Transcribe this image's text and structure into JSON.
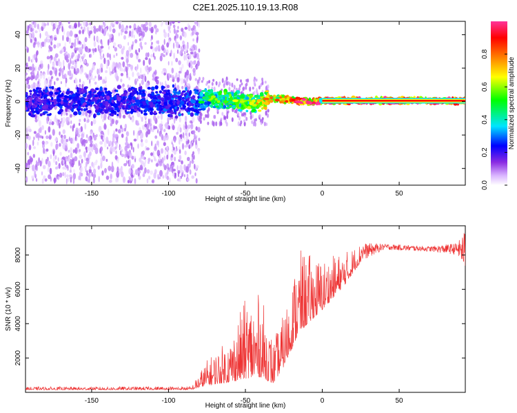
{
  "title": "C2E1.2025.110.19.13.R08",
  "chart_data": [
    {
      "type": "heatmap",
      "xlabel": "Height of straight line (km)",
      "ylabel": "Frequency (Hz)",
      "xlim": [
        -193,
        93
      ],
      "ylim": [
        -50,
        48
      ],
      "xticks": [
        -150,
        -100,
        -50,
        0,
        50
      ],
      "yticks": [
        -40,
        -20,
        0,
        20,
        40
      ],
      "colorbar": {
        "label": "Normalized spectral amplitude",
        "range": [
          0,
          1
        ],
        "ticks": [
          "0.0",
          "0.2",
          "0.4",
          "0.6",
          "0.8"
        ],
        "colors": [
          "#ffffff",
          "#d9b3ff",
          "#8a2be2",
          "#0000ff",
          "#00e5ff",
          "#00ff00",
          "#ffff00",
          "#ff8000",
          "#ff0000",
          "#ff3399"
        ]
      },
      "ridge": {
        "points": [
          {
            "x": -193,
            "y": 0,
            "amp": 0.25
          },
          {
            "x": -120,
            "y": 0,
            "amp": 0.26
          },
          {
            "x": -82,
            "y": 0,
            "amp": 0.3
          },
          {
            "x": -75,
            "y": 2,
            "amp": 0.45
          },
          {
            "x": -60,
            "y": 1,
            "amp": 0.55
          },
          {
            "x": -45,
            "y": -1,
            "amp": 0.6
          },
          {
            "x": -32,
            "y": 2,
            "amp": 0.75
          },
          {
            "x": -20,
            "y": 1,
            "amp": 0.8
          },
          {
            "x": -10,
            "y": 0,
            "amp": 0.9
          },
          {
            "x": 0,
            "y": 0.5,
            "amp": 0.97
          },
          {
            "x": 93,
            "y": 0.5,
            "amp": 0.98
          }
        ],
        "scatter_halfwidth_hz": {
          "below_minus80": 48,
          "minus80_to_minus35": 6,
          "above_minus35": 2
        }
      }
    },
    {
      "type": "line",
      "xlabel": "Height of straight line (km)",
      "ylabel": "SNR (10 * v/v)",
      "xlim": [
        -193,
        93
      ],
      "ylim": [
        0,
        9700
      ],
      "xticks": [
        -150,
        -100,
        -50,
        0,
        50
      ],
      "yticks": [
        2000,
        4000,
        6000,
        8000
      ],
      "color": "#ee3333",
      "envelope": [
        {
          "x": -193,
          "base": 150,
          "peak": 320
        },
        {
          "x": -85,
          "base": 150,
          "peak": 350
        },
        {
          "x": -75,
          "base": 400,
          "peak": 1900
        },
        {
          "x": -60,
          "base": 600,
          "peak": 3200
        },
        {
          "x": -50,
          "base": 800,
          "peak": 5500
        },
        {
          "x": -40,
          "base": 900,
          "peak": 5800
        },
        {
          "x": -32,
          "base": 500,
          "peak": 3000
        },
        {
          "x": -25,
          "base": 1500,
          "peak": 4600
        },
        {
          "x": -15,
          "base": 3500,
          "peak": 8300
        },
        {
          "x": 0,
          "base": 4800,
          "peak": 7800
        },
        {
          "x": 15,
          "base": 6300,
          "peak": 8200
        },
        {
          "x": 25,
          "base": 7600,
          "peak": 8700
        },
        {
          "x": 40,
          "base": 8300,
          "peak": 8650
        },
        {
          "x": 70,
          "base": 8200,
          "peak": 8500
        },
        {
          "x": 88,
          "base": 8000,
          "peak": 8700
        },
        {
          "x": 93,
          "base": 7000,
          "peak": 9500
        }
      ]
    }
  ]
}
